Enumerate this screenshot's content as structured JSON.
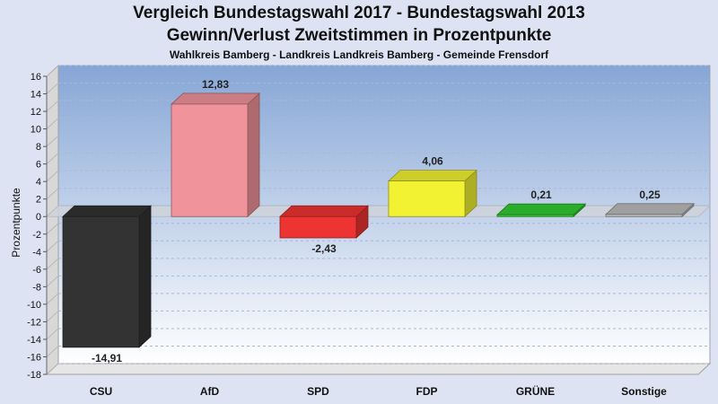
{
  "chart_data": {
    "type": "bar",
    "title": "Vergleich Bundestagswahl 2017 - Bundestagswahl 2013",
    "title2": "Gewinn/Verlust Zweitstimmen in Prozentpunkte",
    "subtitle": "Wahlkreis Bamberg - Landkreis Landkreis Bamberg - Gemeinde Frensdorf",
    "xlabel": "",
    "ylabel": "Prozentpunkte",
    "ylim": [
      -18,
      16
    ],
    "yticks": [
      "16",
      "14",
      "12",
      "10",
      "8",
      "6",
      "4",
      "2",
      "0",
      "-2",
      "-4",
      "-6",
      "-8",
      "-10",
      "-12",
      "-14",
      "-16",
      "-18"
    ],
    "grid": true,
    "categories": [
      "CSU",
      "AfD",
      "SPD",
      "FDP",
      "GRÜNE",
      "Sonstige"
    ],
    "values": [
      -14.91,
      12.83,
      -2.43,
      4.06,
      0.21,
      0.25
    ],
    "value_labels": [
      "-14,91",
      "12,83",
      "-2,43",
      "4,06",
      "0,21",
      "0,25"
    ],
    "colors": [
      "#333333",
      "#f0939a",
      "#ee3333",
      "#f2f233",
      "#33cc33",
      "#bbbbbb"
    ]
  }
}
